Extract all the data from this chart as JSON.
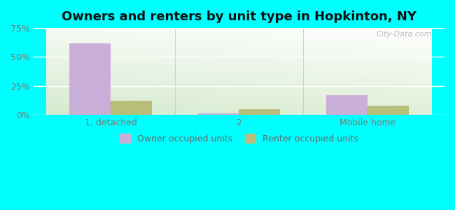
{
  "title": "Owners and renters by unit type in Hopkinton, NY",
  "categories": [
    "1, detached",
    "2",
    "Mobile home"
  ],
  "owner_values": [
    62,
    1.5,
    17
  ],
  "renter_values": [
    12,
    5,
    8
  ],
  "owner_color": "#c9afd8",
  "renter_color": "#b8be7a",
  "ylim": [
    0,
    75
  ],
  "yticks": [
    0,
    25,
    50,
    75
  ],
  "ytick_labels": [
    "0%",
    "25%",
    "50%",
    "75%"
  ],
  "bar_width": 0.32,
  "outer_bg": "#00ffff",
  "title_fontsize": 13,
  "tick_fontsize": 9,
  "legend_fontsize": 9,
  "watermark": "City-Data.com"
}
